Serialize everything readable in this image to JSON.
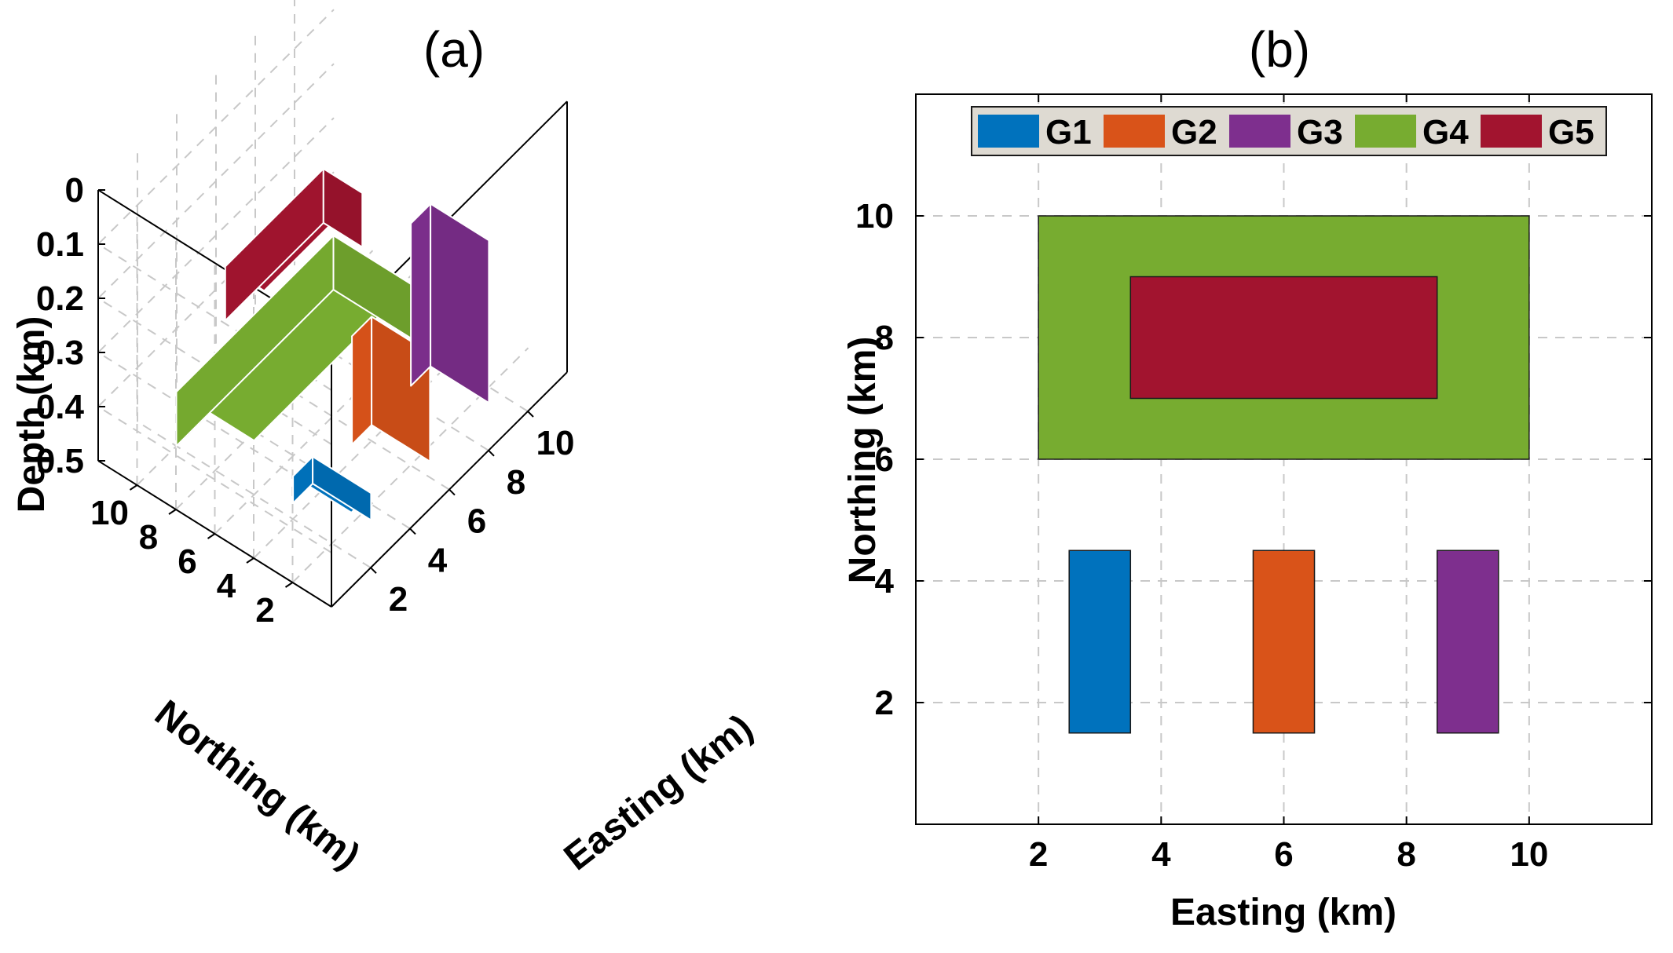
{
  "chart_data": [
    {
      "id": "a",
      "type": "3d-bar",
      "title": "(a)",
      "xlabel": "Easting (km)",
      "ylabel": "Northing (km)",
      "zlabel": "Depth (km)",
      "x_ticks": [
        2,
        4,
        6,
        8,
        10
      ],
      "y_ticks": [
        2,
        4,
        6,
        8,
        10
      ],
      "z_ticks": [
        "0",
        "0.1",
        "0.2",
        "0.3",
        "0.4",
        "0.5"
      ],
      "xlim": [
        0,
        12
      ],
      "ylim": [
        0,
        12
      ],
      "zlim": [
        0,
        0.5
      ],
      "z_reversed": true,
      "grid": true,
      "bodies": [
        {
          "name": "G4",
          "color": "#77ac30",
          "x": [
            2,
            10
          ],
          "y": [
            6,
            10
          ],
          "z": [
            0.4,
            0.5
          ]
        },
        {
          "name": "G1",
          "color": "#0072bd",
          "x": [
            2.5,
            3.5
          ],
          "y": [
            1.5,
            4.5
          ],
          "z": [
            0.45,
            0.5
          ]
        },
        {
          "name": "G2",
          "color": "#d95319",
          "x": [
            5.5,
            6.5
          ],
          "y": [
            1.5,
            4.5
          ],
          "z": [
            0.3,
            0.5
          ]
        },
        {
          "name": "G3",
          "color": "#7e2f8e",
          "x": [
            8.5,
            9.5
          ],
          "y": [
            1.5,
            4.5
          ],
          "z": [
            0.2,
            0.5
          ]
        },
        {
          "name": "G5",
          "color": "#a2142f",
          "x": [
            3.5,
            8.5
          ],
          "y": [
            7,
            9
          ],
          "z": [
            0.2,
            0.3
          ]
        }
      ]
    },
    {
      "id": "b",
      "type": "rectangles",
      "title": "(b)",
      "xlabel": "Easting (km)",
      "ylabel": "Northing (km)",
      "x_ticks": [
        2,
        4,
        6,
        8,
        10
      ],
      "y_ticks": [
        2,
        4,
        6,
        8,
        10
      ],
      "xlim": [
        0,
        12
      ],
      "ylim": [
        0,
        12
      ],
      "grid": true,
      "legend": {
        "location": "top",
        "entries": [
          "G1",
          "G2",
          "G3",
          "G4",
          "G5"
        ]
      },
      "rects": [
        {
          "name": "G4",
          "color": "#77ac30",
          "x": [
            2,
            10
          ],
          "y": [
            6,
            10
          ]
        },
        {
          "name": "G5",
          "color": "#a2142f",
          "x": [
            3.5,
            8.5
          ],
          "y": [
            7,
            9
          ]
        },
        {
          "name": "G1",
          "color": "#0072bd",
          "x": [
            2.5,
            3.5
          ],
          "y": [
            1.5,
            4.5
          ]
        },
        {
          "name": "G2",
          "color": "#d95319",
          "x": [
            5.5,
            6.5
          ],
          "y": [
            1.5,
            4.5
          ]
        },
        {
          "name": "G3",
          "color": "#7e2f8e",
          "x": [
            8.5,
            9.5
          ],
          "y": [
            1.5,
            4.5
          ]
        }
      ]
    }
  ],
  "legend_colors": {
    "G1": "#0072bd",
    "G2": "#d95319",
    "G3": "#7e2f8e",
    "G4": "#77ac30",
    "G5": "#a2142f"
  }
}
